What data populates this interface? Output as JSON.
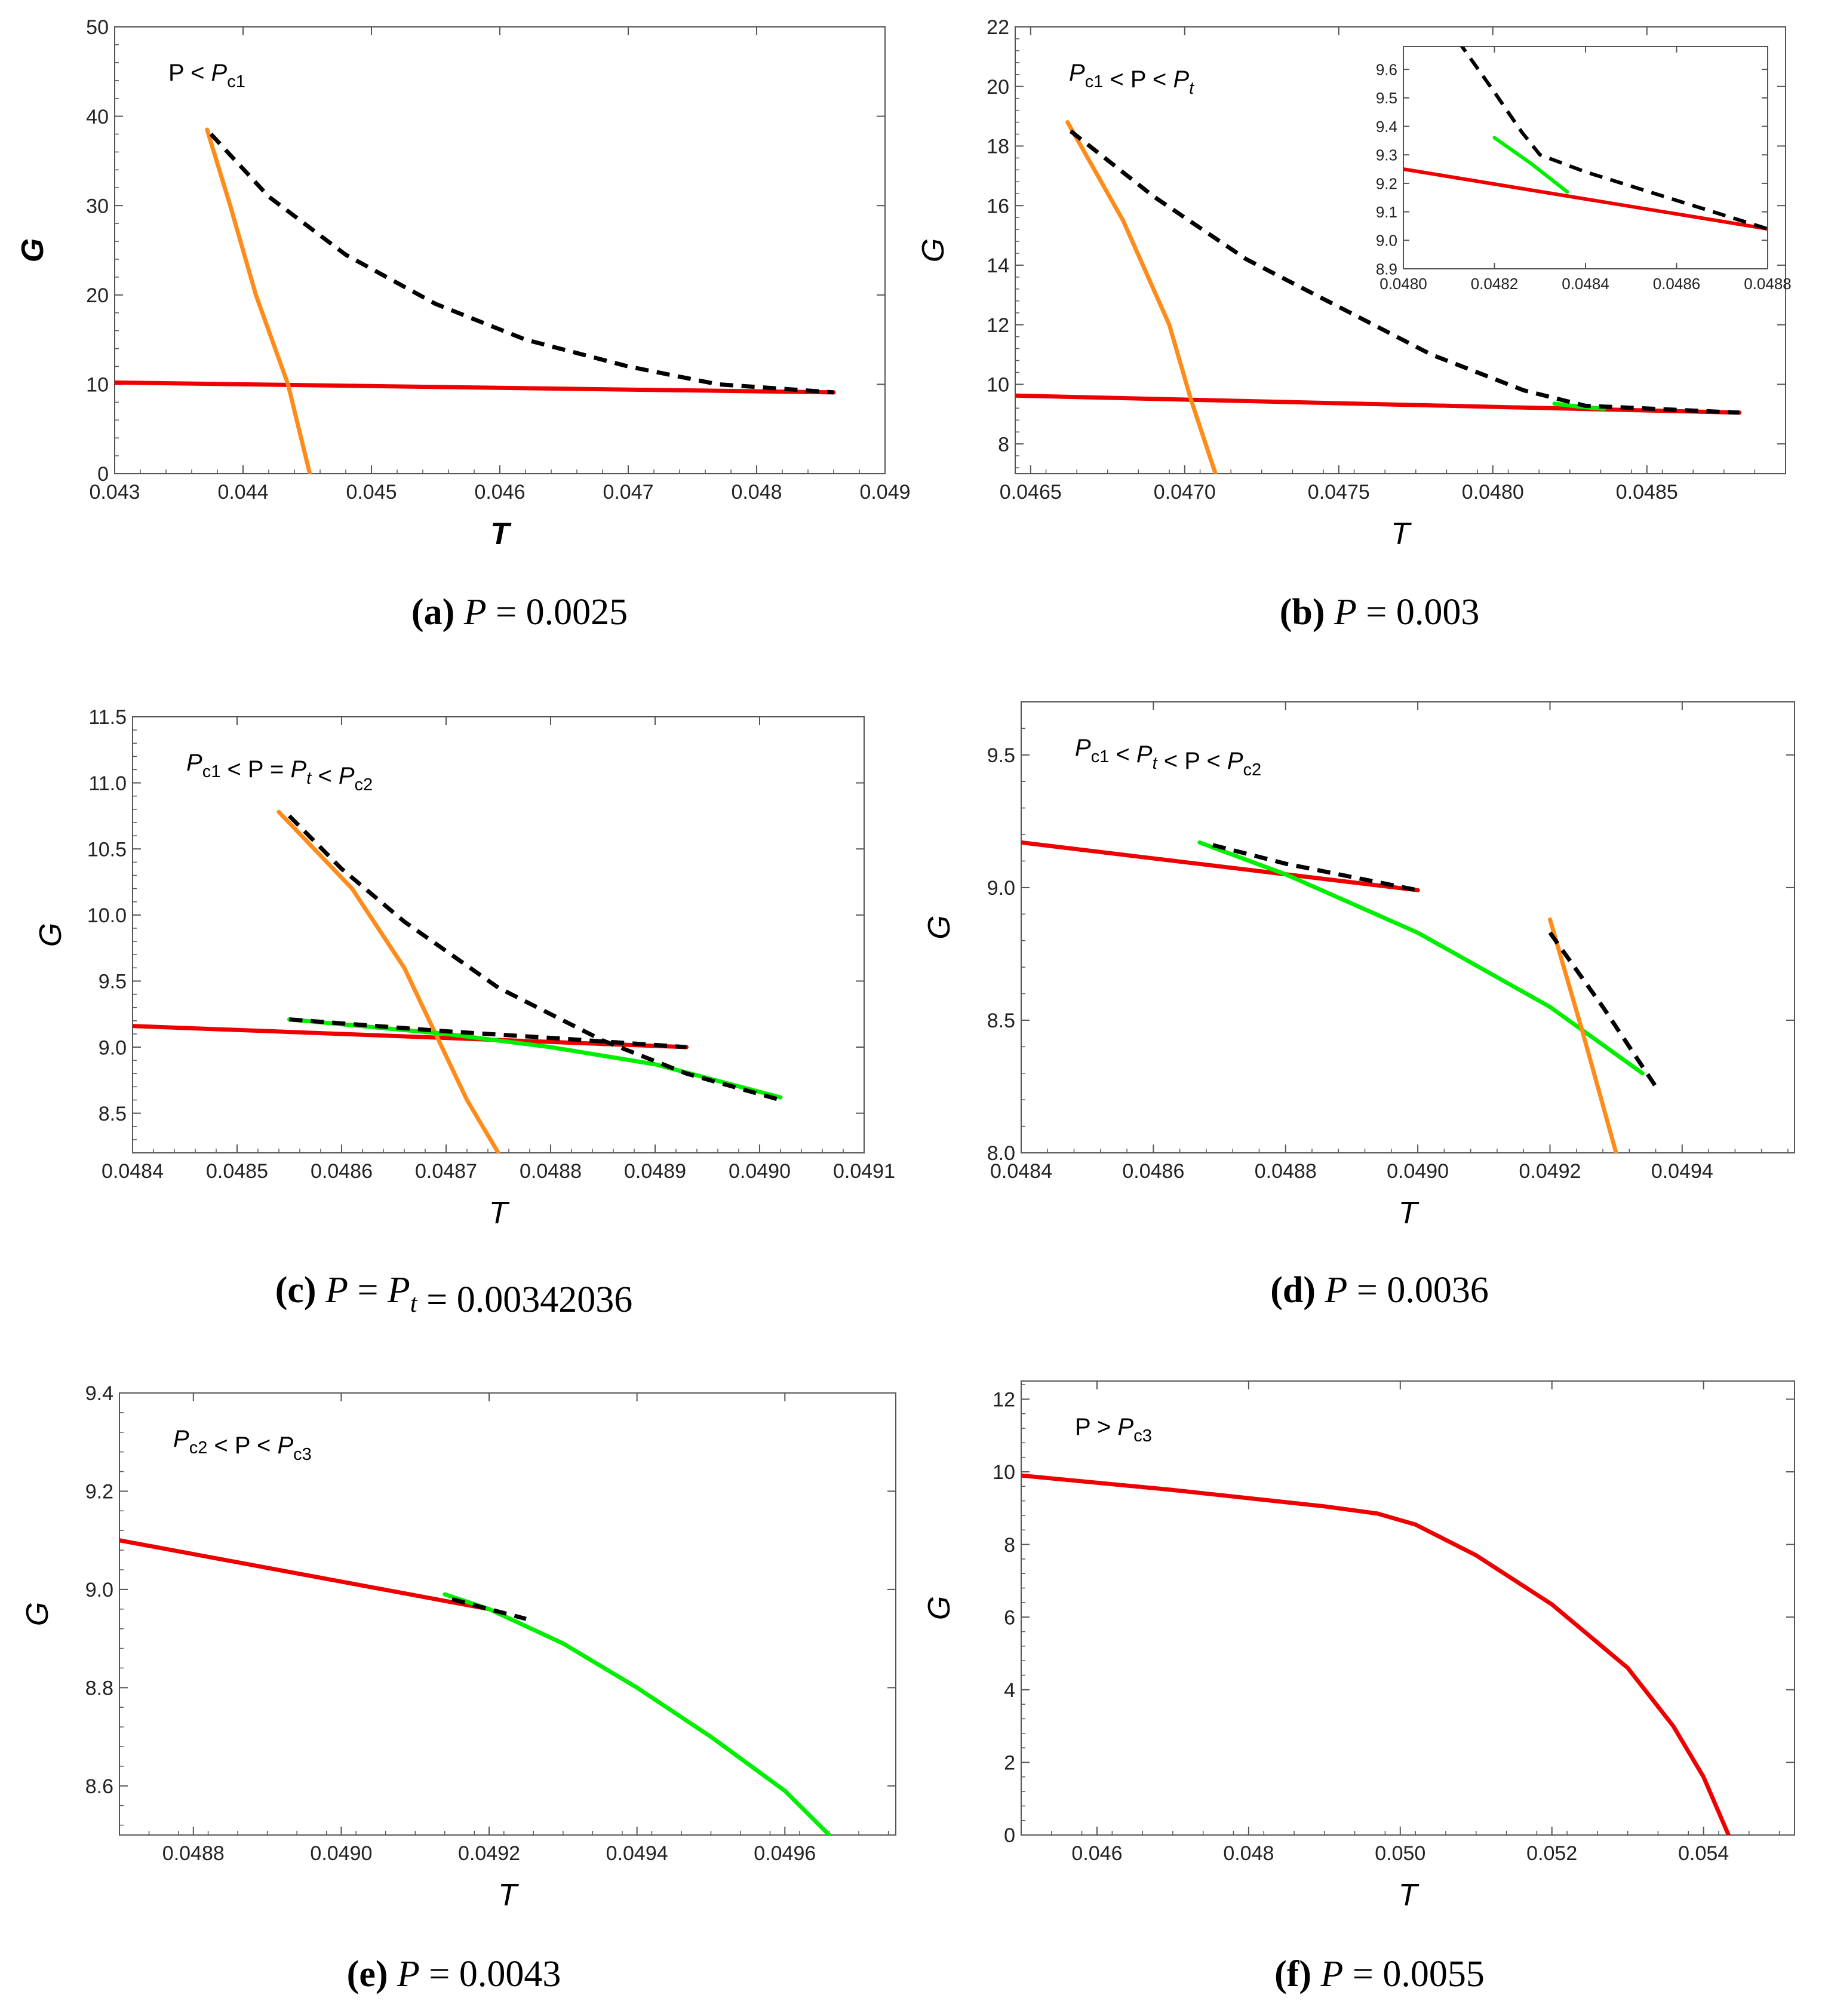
{
  "colors": {
    "red": "#ee0000",
    "orange": "#ff8c1a",
    "green": "#00ee00",
    "black": "#000000",
    "frame": "#555555"
  },
  "chart_data": [
    {
      "id": "a",
      "type": "line",
      "caption": {
        "letter": "(a)",
        "text": "P = 0.0025"
      },
      "annotation": "P < P_c1",
      "xlabel": "T",
      "ylabel": "G",
      "bold_labels": true,
      "xlim": [
        0.043,
        0.049
      ],
      "ylim": [
        0,
        50
      ],
      "xticks": [
        0.043,
        0.044,
        0.045,
        0.046,
        0.047,
        0.048,
        0.049
      ],
      "xtick_labels": [
        "0.043",
        "0.044",
        "0.045",
        "0.046",
        "0.047",
        "0.048",
        "0.049"
      ],
      "yticks": [
        0,
        10,
        20,
        30,
        40,
        50
      ],
      "ytick_labels": [
        "0",
        "10",
        "20",
        "30",
        "40",
        "50"
      ],
      "series": [
        {
          "name": "red",
          "color": "red",
          "dash": false,
          "points": [
            [
              0.043,
              10.2
            ],
            [
              0.0486,
              9.1
            ]
          ]
        },
        {
          "name": "orange",
          "color": "orange",
          "dash": false,
          "points": [
            [
              0.04372,
              38.5
            ],
            [
              0.0439,
              30
            ],
            [
              0.0441,
              20
            ],
            [
              0.04435,
              10
            ],
            [
              0.04452,
              0
            ]
          ]
        },
        {
          "name": "black-dashed",
          "color": "black",
          "dash": true,
          "points": [
            [
              0.04375,
              38.0
            ],
            [
              0.0442,
              31.0
            ],
            [
              0.0448,
              24.5
            ],
            [
              0.0455,
              19.0
            ],
            [
              0.0462,
              15.0
            ],
            [
              0.047,
              12.0
            ],
            [
              0.0477,
              10.0
            ],
            [
              0.0486,
              9.1
            ]
          ]
        }
      ]
    },
    {
      "id": "b",
      "type": "line",
      "caption": {
        "letter": "(b)",
        "text": "P = 0.003"
      },
      "annotation": "P_c1 < P < P_t",
      "xlabel": "T",
      "ylabel": "G",
      "bold_labels": false,
      "xlim": [
        0.04645,
        0.04895
      ],
      "ylim": [
        7,
        22
      ],
      "xticks": [
        0.0465,
        0.047,
        0.0475,
        0.048,
        0.0485
      ],
      "xtick_labels": [
        "0.0465",
        "0.0470",
        "0.0475",
        "0.0480",
        "0.0485"
      ],
      "yticks": [
        8,
        10,
        12,
        14,
        16,
        18,
        20,
        22
      ],
      "ytick_labels": [
        "8",
        "10",
        "12",
        "14",
        "16",
        "18",
        "20",
        "22"
      ],
      "series": [
        {
          "name": "red",
          "color": "red",
          "dash": false,
          "points": [
            [
              0.04645,
              9.62
            ],
            [
              0.0488,
              9.05
            ]
          ]
        },
        {
          "name": "orange",
          "color": "orange",
          "dash": false,
          "points": [
            [
              0.04662,
              18.8
            ],
            [
              0.0468,
              15.5
            ],
            [
              0.04695,
              12.0
            ],
            [
              0.04702,
              9.5
            ],
            [
              0.0471,
              7.0
            ]
          ]
        },
        {
          "name": "green",
          "color": "green",
          "dash": false,
          "points": [
            [
              0.0482,
              9.35
            ],
            [
              0.04828,
              9.25
            ],
            [
              0.04836,
              9.18
            ]
          ]
        },
        {
          "name": "black-dashed",
          "color": "black",
          "dash": true,
          "points": [
            [
              0.04663,
              18.5
            ],
            [
              0.0469,
              16.3
            ],
            [
              0.0472,
              14.2
            ],
            [
              0.0475,
              12.6
            ],
            [
              0.0478,
              11.0
            ],
            [
              0.0481,
              9.8
            ],
            [
              0.0483,
              9.28
            ],
            [
              0.0488,
              9.05
            ]
          ]
        }
      ],
      "inset": {
        "xlim": [
          0.048,
          0.0488
        ],
        "ylim": [
          8.9,
          9.68
        ],
        "xticks": [
          0.048,
          0.0482,
          0.0484,
          0.0486,
          0.0488
        ],
        "xtick_labels": [
          "0.0480",
          "0.0482",
          "0.0484",
          "0.0486",
          "0.0488"
        ],
        "yticks": [
          8.9,
          9.0,
          9.1,
          9.2,
          9.3,
          9.4,
          9.5,
          9.6
        ],
        "ytick_labels": [
          "8.9",
          "9.0",
          "9.1",
          "9.2",
          "9.3",
          "9.4",
          "9.5",
          "9.6"
        ],
        "series": [
          {
            "name": "red",
            "color": "red",
            "dash": false,
            "points": [
              [
                0.048,
                9.25
              ],
              [
                0.0488,
                9.04
              ]
            ]
          },
          {
            "name": "green",
            "color": "green",
            "dash": false,
            "points": [
              [
                0.0482,
                9.36
              ],
              [
                0.04828,
                9.27
              ],
              [
                0.04836,
                9.17
              ]
            ]
          },
          {
            "name": "black-dashed",
            "color": "black",
            "dash": true,
            "points": [
              [
                0.04812,
                9.7
              ],
              [
                0.0482,
                9.52
              ],
              [
                0.04826,
                9.38
              ],
              [
                0.0483,
                9.3
              ],
              [
                0.0484,
                9.24
              ],
              [
                0.0486,
                9.14
              ],
              [
                0.0488,
                9.04
              ]
            ]
          }
        ]
      }
    },
    {
      "id": "c",
      "type": "line",
      "caption": {
        "letter": "(c)",
        "text": "P = P_t = 0.00342036"
      },
      "annotation": "P_c1 < P = P_t < P_c2",
      "xlabel": "T",
      "ylabel": "G",
      "bold_labels": false,
      "xlim": [
        0.0484,
        0.0491
      ],
      "ylim": [
        8.2,
        11.5
      ],
      "xticks": [
        0.0484,
        0.0485,
        0.0486,
        0.0487,
        0.0488,
        0.0489,
        0.049,
        0.0491
      ],
      "xtick_labels": [
        "0.0484",
        "0.0485",
        "0.0486",
        "0.0487",
        "0.0488",
        "0.0489",
        "0.0490",
        "0.0491"
      ],
      "yticks": [
        8.5,
        9.0,
        9.5,
        10.0,
        10.5,
        11.0,
        11.5
      ],
      "ytick_labels": [
        "8.5",
        "9.0",
        "9.5",
        "10.0",
        "10.5",
        "11.0",
        "11.5"
      ],
      "series": [
        {
          "name": "red",
          "color": "red",
          "dash": false,
          "points": [
            [
              0.0484,
              9.16
            ],
            [
              0.04893,
              9.0
            ]
          ]
        },
        {
          "name": "orange",
          "color": "orange",
          "dash": false,
          "points": [
            [
              0.04854,
              10.78
            ],
            [
              0.04861,
              10.2
            ],
            [
              0.04866,
              9.6
            ],
            [
              0.04869,
              9.1
            ],
            [
              0.04872,
              8.6
            ],
            [
              0.04875,
              8.2
            ]
          ]
        },
        {
          "name": "green",
          "color": "green",
          "dash": false,
          "points": [
            [
              0.04855,
              9.21
            ],
            [
              0.0487,
              9.1
            ],
            [
              0.0488,
              9.0
            ],
            [
              0.0489,
              8.87
            ],
            [
              0.04902,
              8.62
            ]
          ]
        },
        {
          "name": "black-dashed-upper",
          "color": "black",
          "dash": true,
          "points": [
            [
              0.04855,
              10.75
            ],
            [
              0.0486,
              10.35
            ],
            [
              0.04866,
              9.95
            ],
            [
              0.04875,
              9.45
            ],
            [
              0.04885,
              9.05
            ],
            [
              0.04893,
              8.8
            ],
            [
              0.04902,
              8.6
            ]
          ]
        },
        {
          "name": "black-dashed-lower",
          "color": "black",
          "dash": true,
          "points": [
            [
              0.04855,
              9.21
            ],
            [
              0.0487,
              9.12
            ],
            [
              0.0488,
              9.07
            ],
            [
              0.04893,
              9.0
            ]
          ]
        }
      ]
    },
    {
      "id": "d",
      "type": "line",
      "caption": {
        "letter": "(d)",
        "text": "P = 0.0036"
      },
      "annotation": "P_c1 < P_t < P < P_c2",
      "xlabel": "T",
      "ylabel": "G",
      "bold_labels": false,
      "xlim": [
        0.0484,
        0.04957
      ],
      "ylim": [
        8.0,
        9.7
      ],
      "xticks": [
        0.0484,
        0.0486,
        0.0488,
        0.049,
        0.0492,
        0.0494
      ],
      "xtick_labels": [
        "0.0484",
        "0.0486",
        "0.0488",
        "0.0490",
        "0.0492",
        "0.0494"
      ],
      "yticks": [
        8.0,
        8.5,
        9.0,
        9.5
      ],
      "ytick_labels": [
        "8.0",
        "8.5",
        "9.0",
        "9.5"
      ],
      "series": [
        {
          "name": "red",
          "color": "red",
          "dash": false,
          "points": [
            [
              0.0484,
              9.17
            ],
            [
              0.049,
              8.99
            ]
          ]
        },
        {
          "name": "green",
          "color": "green",
          "dash": false,
          "points": [
            [
              0.04867,
              9.17
            ],
            [
              0.0488,
              9.05
            ],
            [
              0.049,
              8.83
            ],
            [
              0.0492,
              8.55
            ],
            [
              0.04934,
              8.3
            ]
          ]
        },
        {
          "name": "orange",
          "color": "orange",
          "dash": false,
          "points": [
            [
              0.0492,
              8.88
            ],
            [
              0.04925,
              8.45
            ],
            [
              0.0493,
              8.0
            ]
          ]
        },
        {
          "name": "black-dashed-upper",
          "color": "black",
          "dash": true,
          "points": [
            [
              0.04869,
              9.16
            ],
            [
              0.0488,
              9.09
            ],
            [
              0.049,
              8.99
            ]
          ]
        },
        {
          "name": "black-dashed-lower",
          "color": "black",
          "dash": true,
          "points": [
            [
              0.0492,
              8.83
            ],
            [
              0.04928,
              8.55
            ],
            [
              0.04936,
              8.25
            ]
          ]
        }
      ]
    },
    {
      "id": "e",
      "type": "line",
      "caption": {
        "letter": "(e)",
        "text": "P = 0.0043"
      },
      "annotation": "P_c2 < P < P_c3",
      "xlabel": "T",
      "ylabel": "G",
      "bold_labels": false,
      "xlim": [
        0.0487,
        0.04975
      ],
      "ylim": [
        8.5,
        9.4
      ],
      "xticks": [
        0.0488,
        0.049,
        0.0492,
        0.0494,
        0.0496
      ],
      "xtick_labels": [
        "0.0488",
        "0.0490",
        "0.0492",
        "0.0494",
        "0.0496"
      ],
      "yticks": [
        8.6,
        8.8,
        9.0,
        9.2,
        9.4
      ],
      "ytick_labels": [
        "8.6",
        "8.8",
        "9.0",
        "9.2",
        "9.4"
      ],
      "series": [
        {
          "name": "red",
          "color": "red",
          "dash": false,
          "points": [
            [
              0.0487,
              9.1
            ],
            [
              0.0492,
              8.96
            ]
          ]
        },
        {
          "name": "green",
          "color": "green",
          "dash": false,
          "points": [
            [
              0.04914,
              8.99
            ],
            [
              0.0492,
              8.96
            ],
            [
              0.0493,
              8.89
            ],
            [
              0.0494,
              8.8
            ],
            [
              0.0495,
              8.7
            ],
            [
              0.0496,
              8.59
            ],
            [
              0.04966,
              8.5
            ]
          ]
        },
        {
          "name": "black-dashed",
          "color": "black",
          "dash": true,
          "points": [
            [
              0.04915,
              8.98
            ],
            [
              0.0492,
              8.96
            ],
            [
              0.04925,
              8.94
            ]
          ]
        }
      ]
    },
    {
      "id": "f",
      "type": "line",
      "caption": {
        "letter": "(f)",
        "text": "P = 0.0055"
      },
      "annotation": "P > P_c3",
      "xlabel": "T",
      "ylabel": "G",
      "bold_labels": false,
      "xlim": [
        0.045,
        0.0552
      ],
      "ylim": [
        0,
        12.5
      ],
      "xticks": [
        0.046,
        0.048,
        0.05,
        0.052,
        0.054
      ],
      "xtick_labels": [
        "0.046",
        "0.048",
        "0.050",
        "0.052",
        "0.054"
      ],
      "yticks": [
        0,
        2,
        4,
        6,
        8,
        10,
        12
      ],
      "ytick_labels": [
        "0",
        "2",
        "4",
        "6",
        "8",
        "10",
        "12"
      ],
      "series": [
        {
          "name": "red",
          "color": "red",
          "dash": false,
          "points": [
            [
              0.045,
              9.9
            ],
            [
              0.047,
              9.5
            ],
            [
              0.049,
              9.05
            ],
            [
              0.0497,
              8.85
            ],
            [
              0.0502,
              8.55
            ],
            [
              0.051,
              7.7
            ],
            [
              0.052,
              6.35
            ],
            [
              0.053,
              4.6
            ],
            [
              0.0536,
              3.0
            ],
            [
              0.054,
              1.6
            ],
            [
              0.05433,
              0
            ]
          ]
        }
      ]
    }
  ]
}
